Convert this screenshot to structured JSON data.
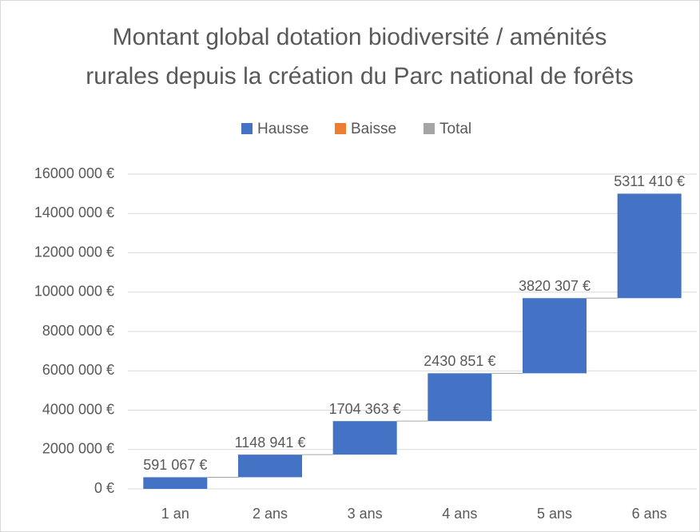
{
  "chart_data": {
    "type": "waterfall",
    "title": [
      "Montant global dotation biodiversité / aménités",
      "rurales depuis la création du Parc national de forêts"
    ],
    "legend": [
      {
        "name": "Hausse",
        "color": "#4472c4"
      },
      {
        "name": "Baisse",
        "color": "#ed7d31"
      },
      {
        "name": "Total",
        "color": "#a5a5a5"
      }
    ],
    "categories": [
      "1 an",
      "2 ans",
      "3 ans",
      "4 ans",
      "5 ans",
      "6 ans"
    ],
    "values": [
      591067,
      1148941,
      1704363,
      2430851,
      3820307,
      5311410
    ],
    "value_labels": [
      "591 067 €",
      "1148 941 €",
      "1704 363 €",
      "2430 851 €",
      "3820 307 €",
      "5311 410 €"
    ],
    "ylim": [
      0,
      16000000
    ],
    "yticks": [
      {
        "value": 0,
        "label": "0 €"
      },
      {
        "value": 2000000,
        "label": "2000 000 €"
      },
      {
        "value": 4000000,
        "label": "4000 000 €"
      },
      {
        "value": 6000000,
        "label": "6000 000 €"
      },
      {
        "value": 8000000,
        "label": "8000 000 €"
      },
      {
        "value": 10000000,
        "label": "10000 000 €"
      },
      {
        "value": 12000000,
        "label": "12000 000 €"
      },
      {
        "value": 14000000,
        "label": "14000 000 €"
      },
      {
        "value": 16000000,
        "label": "16000 000 €"
      }
    ],
    "grid": true
  }
}
